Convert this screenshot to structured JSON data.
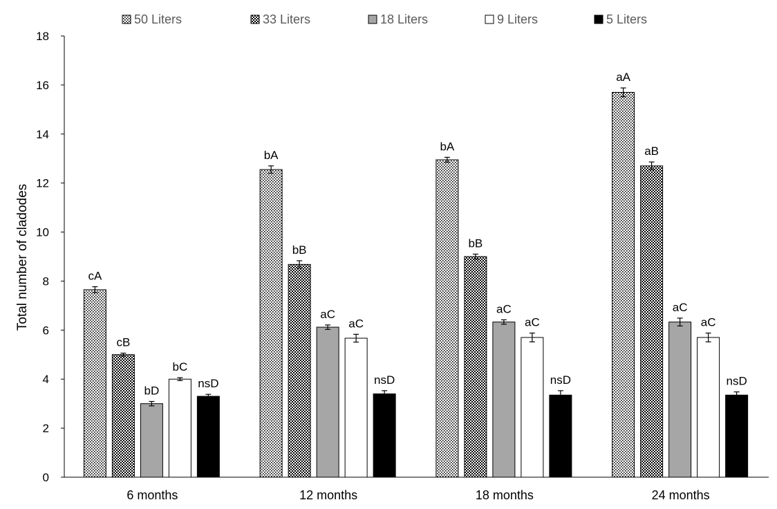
{
  "chart_data": {
    "type": "bar",
    "title": "",
    "xlabel": "",
    "ylabel": "Total number of cladodes",
    "ylim": [
      0,
      18
    ],
    "yticks": [
      0,
      2,
      4,
      6,
      8,
      10,
      12,
      14,
      16,
      18
    ],
    "grid": false,
    "legend_position": "top",
    "categories": [
      "6 months",
      "12 months",
      "18 months",
      "24 months"
    ],
    "series": [
      {
        "name": "50 Liters",
        "fill": "dotted",
        "color": "#ffffff",
        "values": [
          7.65,
          12.55,
          12.95,
          15.7
        ],
        "errors": [
          0.12,
          0.15,
          0.1,
          0.18
        ],
        "labels": [
          "cA",
          "bA",
          "bA",
          "aA"
        ]
      },
      {
        "name": "33 Liters",
        "fill": "checkered",
        "color": "#000000",
        "values": [
          5.0,
          8.68,
          9.0,
          12.7
        ],
        "errors": [
          0.06,
          0.15,
          0.1,
          0.16
        ],
        "labels": [
          "cB",
          "bB",
          "bB",
          "aB"
        ]
      },
      {
        "name": "18 Liters",
        "fill": "solid",
        "color": "#a6a6a6",
        "values": [
          3.0,
          6.12,
          6.33,
          6.33
        ],
        "errors": [
          0.09,
          0.09,
          0.09,
          0.16
        ],
        "labels": [
          "bD",
          "aC",
          "aC",
          "aC"
        ]
      },
      {
        "name": "9 Liters",
        "fill": "solid",
        "color": "#ffffff",
        "values": [
          4.0,
          5.67,
          5.7,
          5.7
        ],
        "errors": [
          0.06,
          0.16,
          0.18,
          0.18
        ],
        "labels": [
          "bC",
          "aC",
          "aC",
          "aC"
        ]
      },
      {
        "name": "5 Liters",
        "fill": "solid",
        "color": "#000000",
        "values": [
          3.3,
          3.4,
          3.35,
          3.35
        ],
        "errors": [
          0.08,
          0.13,
          0.18,
          0.13
        ],
        "labels": [
          "nsD",
          "nsD",
          "nsD",
          "nsD"
        ]
      }
    ]
  }
}
